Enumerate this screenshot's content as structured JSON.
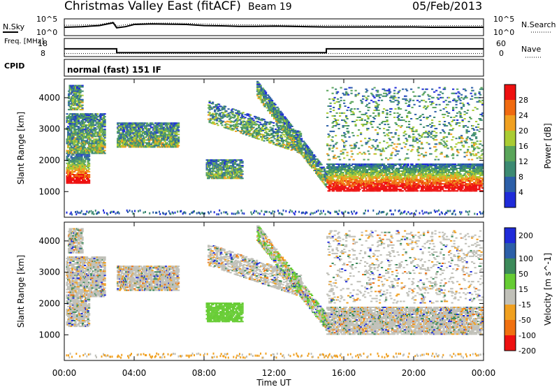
{
  "header": {
    "site": "Christmas Valley East (fitACF)",
    "beam": "Beam 19",
    "date": "05/Feb/2013"
  },
  "noise_panel": {
    "left_label": "N.Sky",
    "left_ticks": [
      "10^5",
      "10^0"
    ],
    "right_ticks": [
      "10^5",
      "10^0"
    ],
    "right_label": "N.Search",
    "sky_trace": [
      [
        0,
        30
      ],
      [
        1,
        32
      ],
      [
        2,
        36
      ],
      [
        2.8,
        46
      ],
      [
        3.0,
        28
      ],
      [
        3.5,
        32
      ],
      [
        4,
        40
      ],
      [
        5,
        42
      ],
      [
        6,
        41
      ],
      [
        7,
        40
      ],
      [
        8,
        36
      ],
      [
        9,
        35
      ],
      [
        10,
        33
      ],
      [
        11,
        33
      ],
      [
        12,
        34
      ],
      [
        13,
        33
      ],
      [
        14,
        32
      ],
      [
        15,
        31
      ],
      [
        16,
        31
      ],
      [
        17,
        31
      ],
      [
        18,
        31
      ],
      [
        19,
        31
      ],
      [
        20,
        31
      ],
      [
        21,
        30
      ],
      [
        22,
        30
      ],
      [
        23,
        30
      ],
      [
        24,
        30
      ]
    ],
    "search_trace": [
      [
        0,
        37
      ],
      [
        1,
        38
      ],
      [
        2,
        40
      ],
      [
        2.8,
        49
      ],
      [
        3.0,
        35
      ],
      [
        4,
        43
      ],
      [
        5,
        45
      ],
      [
        6,
        45
      ],
      [
        7,
        44
      ],
      [
        8,
        42
      ],
      [
        9,
        40
      ],
      [
        10,
        39
      ],
      [
        12,
        38
      ],
      [
        14,
        37
      ],
      [
        16,
        37
      ],
      [
        18,
        36
      ],
      [
        20,
        36
      ],
      [
        22,
        36
      ],
      [
        24,
        36
      ]
    ]
  },
  "freq_panel": {
    "left_label": "Freq. [MHz]",
    "left_ticks": [
      "18",
      "8"
    ],
    "right_ticks": [
      "60",
      "0"
    ],
    "right_label": "Nave",
    "freq_steps": [
      [
        0,
        12
      ],
      [
        3.0,
        12
      ],
      [
        3.0,
        9
      ],
      [
        15.0,
        9
      ],
      [
        15.0,
        12
      ],
      [
        24,
        12
      ]
    ],
    "nave_level": 10
  },
  "cpid": {
    "label": "CPID",
    "mode": "normal (fast) 151 IF"
  },
  "chart_data": [
    {
      "type": "heatmap",
      "ylabel": "Slant Range [km]",
      "yticks": [
        1000,
        2000,
        3000,
        4000
      ],
      "ylim": [
        180,
        4600
      ],
      "colorbar_label": "Power [dB]",
      "colorbar_ticks": [
        4,
        8,
        12,
        16,
        20,
        24,
        28
      ],
      "colors": [
        "#1f2bd9",
        "#2c5fa8",
        "#3c8a72",
        "#5aa55a",
        "#aacc33",
        "#f0a020",
        "#f06a10",
        "#ee1010"
      ]
    },
    {
      "type": "heatmap",
      "ylabel": "Slant Range [km]",
      "yticks": [
        1000,
        2000,
        3000,
        4000
      ],
      "ylim": [
        180,
        4600
      ],
      "colorbar_label": "Velocity [m s^-1]",
      "colorbar_ticks": [
        200,
        100,
        50,
        15,
        -15,
        -50,
        -100,
        -200
      ],
      "colors": [
        "#1f2bd9",
        "#2c5fa8",
        "#3c8a5a",
        "#66cc33",
        "#c0c0b8",
        "#f0a020",
        "#f07010",
        "#ee1010"
      ]
    }
  ],
  "time_axis": {
    "ticks": [
      "00:00",
      "04:00",
      "08:00",
      "12:00",
      "16:00",
      "20:00",
      "00:00"
    ],
    "label": "Time UT"
  }
}
